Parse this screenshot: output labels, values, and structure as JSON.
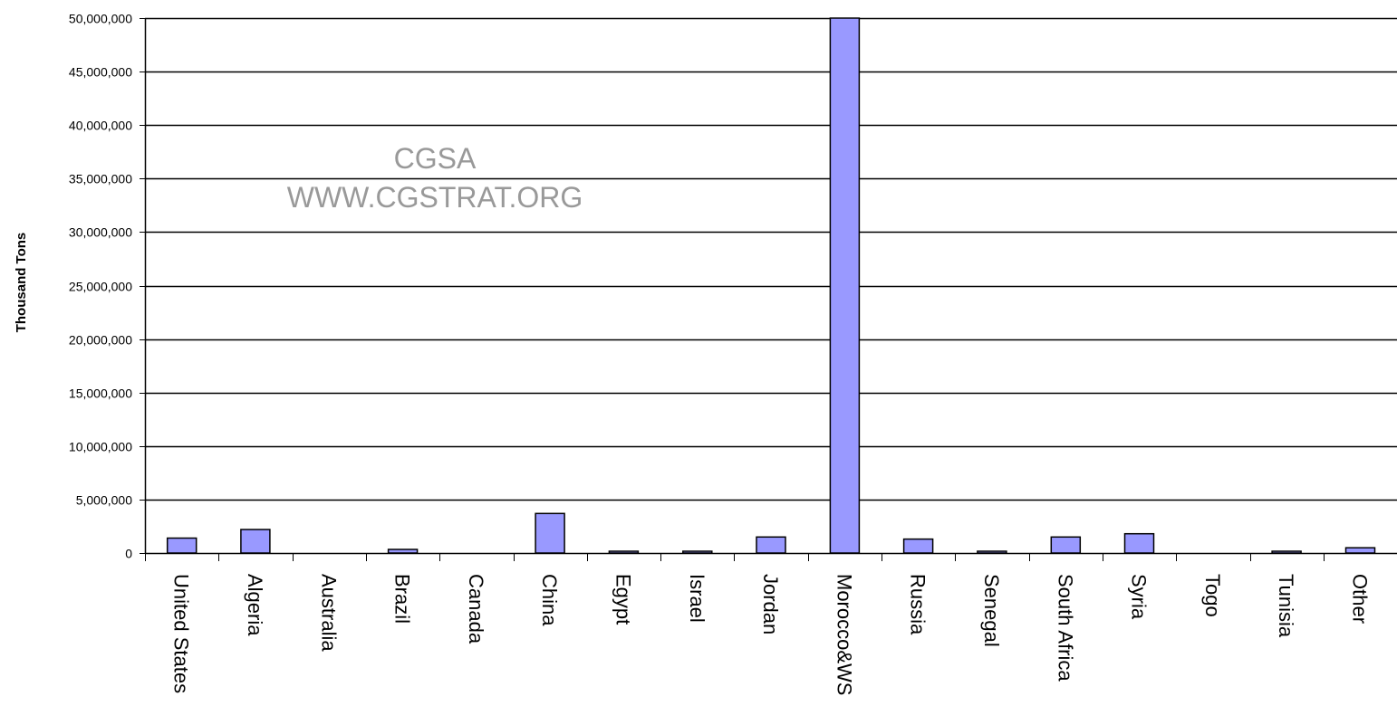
{
  "chart_data": {
    "type": "bar",
    "title": "",
    "xlabel": "",
    "ylabel": "Thousand Tons",
    "ylim": [
      0,
      50000000
    ],
    "yticks": [
      0,
      5000000,
      10000000,
      15000000,
      20000000,
      25000000,
      30000000,
      35000000,
      40000000,
      45000000,
      50000000
    ],
    "ytick_labels": [
      "0",
      "5,000,000",
      "10,000,000",
      "15,000,000",
      "20,000,000",
      "25,000,000",
      "30,000,000",
      "35,000,000",
      "40,000,000",
      "45,000,000",
      "50,000,000"
    ],
    "grid": true,
    "legend": "none",
    "categories": [
      "United States",
      "Algeria",
      "Australia",
      "Brazil",
      "Canada",
      "China",
      "Egypt",
      "Israel",
      "Jordan",
      "Morocco&WS",
      "Russia",
      "Senegal",
      "South Africa",
      "Syria",
      "Togo",
      "Tunisia",
      "Other"
    ],
    "values": [
      1400000,
      2200000,
      0,
      340000,
      0,
      3700000,
      100000,
      130000,
      1500000,
      50000000,
      1300000,
      80000,
      1500000,
      1800000,
      0,
      100000,
      490000
    ],
    "bar_color": "#9999ff",
    "bar_edge_color": "#000000",
    "grid_color": "#000000"
  },
  "watermark": {
    "line1": "CGSA",
    "line2": "WWW.CGSTRAT.ORG",
    "color": "#999999"
  }
}
